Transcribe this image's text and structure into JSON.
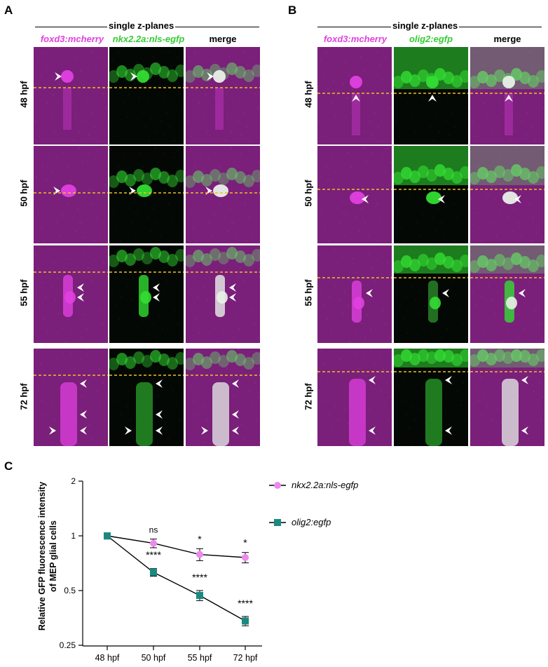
{
  "panel_a": {
    "letter": "A",
    "header": "single z-planes",
    "columns": [
      "foxd3:mcherry",
      "nkx2.2a:nls-egfp",
      "merge"
    ],
    "rows": [
      "48 hpf",
      "50 hpf",
      "55 hpf",
      "72 hpf"
    ]
  },
  "panel_b": {
    "letter": "B",
    "header": "single z-planes",
    "columns": [
      "foxd3:mcherry",
      "olig2:egfp",
      "merge"
    ],
    "rows": [
      "48 hpf",
      "50 hpf",
      "55 hpf",
      "72 hpf"
    ]
  },
  "colors": {
    "magenta": "#e040e0",
    "green": "#33dd33",
    "dashed_line": "#f0c020",
    "series_nkx": "#ee88ee",
    "series_olig": "#1a8a80"
  },
  "panel_c": {
    "letter": "C",
    "chart_data": {
      "type": "line",
      "title": "",
      "xlabel": "",
      "ylabel_line1": "Relative GFP fluorescence intensity",
      "ylabel_line2": "of MEP glial cells",
      "y_scale": "log2",
      "ylim": [
        0.25,
        2
      ],
      "yticks": [
        "0.25",
        "0.5",
        "1",
        "2"
      ],
      "ytick_values": [
        0.25,
        0.5,
        1,
        2
      ],
      "categories": [
        "48 hpf",
        "50 hpf",
        "55 hpf",
        "72 hpf"
      ],
      "legend_position": "right",
      "series": [
        {
          "name": "nkx2.2a:nls-egfp",
          "marker": "circle",
          "values": [
            1.0,
            0.91,
            0.79,
            0.76
          ],
          "errors": [
            0.04,
            0.05,
            0.06,
            0.05
          ],
          "significance": [
            "",
            "ns",
            "*",
            "*"
          ]
        },
        {
          "name": "olig2:egfp",
          "marker": "square",
          "values": [
            1.0,
            0.63,
            0.47,
            0.34
          ],
          "errors": [
            0.04,
            0.03,
            0.03,
            0.02
          ],
          "significance": [
            "",
            "****",
            "****",
            "****"
          ]
        }
      ]
    }
  }
}
